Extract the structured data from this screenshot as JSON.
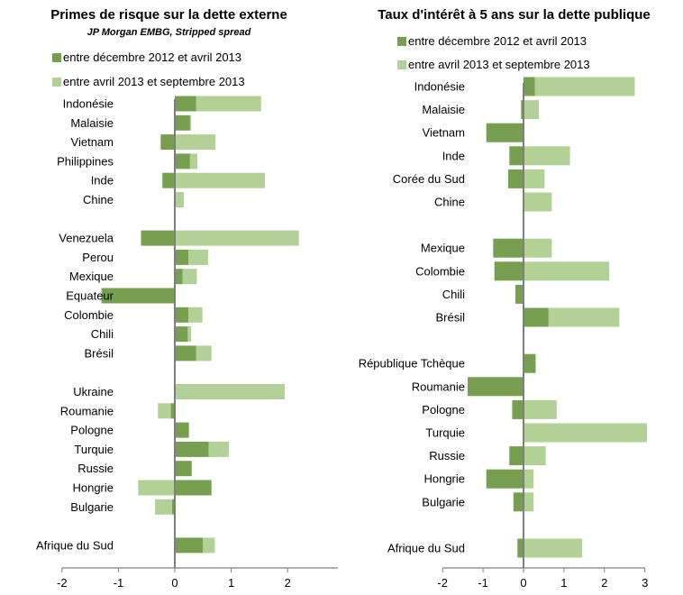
{
  "colors": {
    "dark": "#76A04F",
    "light": "#B2D197",
    "axis": "#7F7F7F"
  },
  "left": {
    "title": "Primes de risque sur la dette externe",
    "subtitle": "JP Morgan EMBG, Stripped spread",
    "legend": [
      "entre  décembre 2012 et avril 2013",
      "entre avril 2013 et septembre 2013"
    ]
  },
  "right": {
    "title": "Taux d'intérêt à 5 ans sur la dette publique",
    "legend": [
      "entre  décembre 2012 et avril 2013",
      "entre avril 2013 et septembre 2013"
    ]
  },
  "chart_data": [
    {
      "type": "bar",
      "orientation": "horizontal",
      "stacked": true,
      "title": "Primes de risque sur la dette externe",
      "subtitle": "JP Morgan EMBG, Stripped spread",
      "xlim": [
        -2,
        3
      ],
      "xticks": [
        "-2",
        "-1",
        "0",
        "1",
        "2",
        "3"
      ],
      "categories": [
        "Indonésie",
        "Malaisie",
        "Vietnam",
        "Philippines",
        "Inde",
        "Chine",
        "",
        "Venezuela",
        "Perou",
        "Mexique",
        "Equateur",
        "Colombie",
        "Chili",
        "Brésil",
        "",
        "Ukraine",
        "Roumanie",
        "Pologne",
        "Turquie",
        "Russie",
        "Hongrie",
        "Bulgarie",
        "",
        "Afrique du Sud"
      ],
      "series": [
        {
          "name": "entre  décembre 2012 et avril 2013",
          "values": [
            0.38,
            0.27,
            -0.25,
            0.27,
            -0.22,
            0,
            null,
            -0.6,
            0.24,
            0.14,
            -1.3,
            0.24,
            0.23,
            0.38,
            null,
            0,
            -0.07,
            0.25,
            0.6,
            0.3,
            0.65,
            -0.05,
            null,
            0.5
          ]
        },
        {
          "name": "entre avril 2013 et septembre 2013",
          "values": [
            1.15,
            0.02,
            0.72,
            0.13,
            1.6,
            0.16,
            null,
            2.2,
            0.35,
            0.25,
            0,
            0.25,
            0.06,
            0.27,
            null,
            1.95,
            -0.23,
            0,
            0.36,
            0,
            -0.65,
            -0.3,
            null,
            0.21
          ]
        }
      ]
    },
    {
      "type": "bar",
      "orientation": "horizontal",
      "stacked": true,
      "title": "Taux d'intérêt à 5 ans sur la dette publique",
      "xlim": [
        -2,
        3
      ],
      "xticks": [
        "-2",
        "-1",
        "0",
        "1",
        "2",
        "3"
      ],
      "categories": [
        "Indonésie",
        "Malaisie",
        "Vietnam",
        "Inde",
        "Corée du Sud",
        "Chine",
        "",
        "Mexique",
        "Colombie",
        "Chili",
        "Brésil",
        "",
        "République Tchèque",
        "Roumanie",
        "Pologne",
        "Turquie",
        "Russie",
        "Hongrie",
        "Bulgarie",
        "",
        "Afrique du Sud"
      ],
      "series": [
        {
          "name": "entre  décembre 2012 et avril 2013",
          "values": [
            0.28,
            -0.06,
            -0.92,
            -0.35,
            -0.38,
            0,
            null,
            -0.75,
            -0.72,
            -0.2,
            0.62,
            null,
            0.3,
            -1.38,
            -0.28,
            0,
            -0.35,
            -0.92,
            -0.25,
            null,
            -0.15
          ]
        },
        {
          "name": "entre avril 2013 et septembre 2013",
          "values": [
            2.47,
            0.38,
            0,
            1.15,
            0.52,
            0.7,
            null,
            0.7,
            2.12,
            0,
            1.75,
            null,
            0,
            0,
            0.82,
            3.05,
            0.55,
            0.25,
            0.25,
            null,
            1.45
          ]
        }
      ]
    }
  ]
}
